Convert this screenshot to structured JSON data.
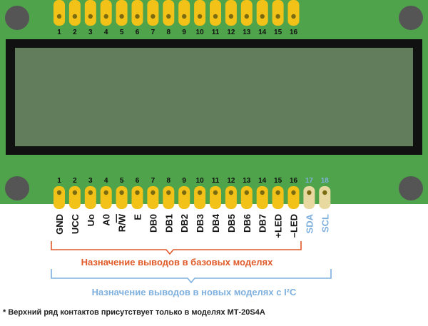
{
  "colors": {
    "board": "#4fa34a",
    "hole": "#555555",
    "display_frame": "#111111",
    "display_screen": "#627d5c",
    "pad": "#f2c218",
    "pad_hole": "#7a6a10",
    "i2c_pad": "#e8d9a0",
    "basic_accent": "#e05a2a",
    "i2c_accent": "#7fb0dd",
    "text": "#111111"
  },
  "top_header": {
    "numbers": [
      "1",
      "2",
      "3",
      "4",
      "5",
      "6",
      "7",
      "8",
      "9",
      "10",
      "11",
      "12",
      "13",
      "14",
      "15",
      "16"
    ]
  },
  "bottom_header": {
    "numbers": [
      "1",
      "2",
      "3",
      "4",
      "5",
      "6",
      "7",
      "8",
      "9",
      "10",
      "11",
      "12",
      "13",
      "14",
      "15",
      "16",
      "17",
      "18"
    ],
    "labels": [
      "GND",
      "UCC",
      "Uo",
      "A0",
      "R/W",
      "E",
      "DB0",
      "DB1",
      "DB2",
      "DB3",
      "DB4",
      "DB5",
      "DB6",
      "DB7",
      "+LED",
      "–LED",
      "SDA",
      "SCL"
    ]
  },
  "legend": {
    "basic": "Назначение выводов в базовых моделях",
    "i2c": "Назначение выводов в новых моделях с I²C"
  },
  "footnote": "* Верхний ряд контактов присутствует только в моделях МТ-20S4A"
}
